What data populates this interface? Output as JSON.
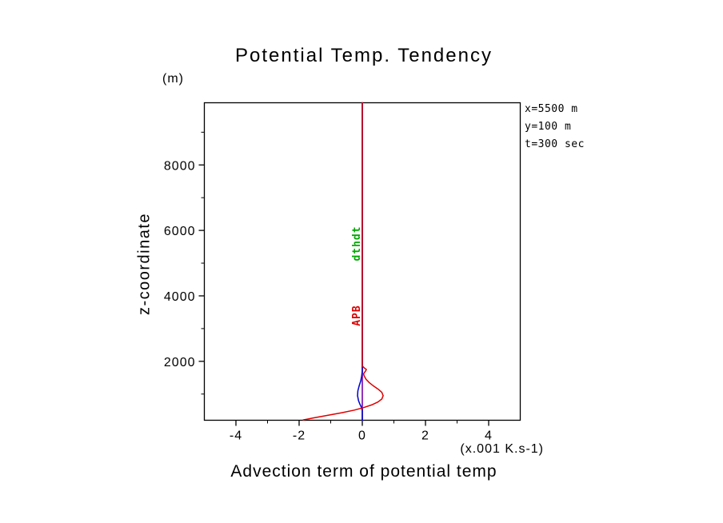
{
  "title": "Potential Temp. Tendency",
  "annotations": {
    "x": "x=5500 m",
    "y": "y=100 m",
    "t": "t=300 sec"
  },
  "y_axis": {
    "unit": "(m)",
    "label": "z-coordinate"
  },
  "x_axis": {
    "unit": "(x.001 K.s-1)",
    "label": "Advection term of potential temp"
  },
  "chart_data": {
    "type": "line",
    "title": "Potential Temp. Tendency",
    "xlabel": "Advection term of potential temp (x.001 K.s-1)",
    "ylabel": "z-coordinate (m)",
    "xlim": [
      -5,
      5
    ],
    "ylim": [
      200,
      9900
    ],
    "grid": false,
    "x_ticks": [
      {
        "value": -4,
        "label": "-4"
      },
      {
        "value": -2,
        "label": "-2"
      },
      {
        "value": 0,
        "label": "0"
      },
      {
        "value": 2,
        "label": "2"
      },
      {
        "value": 4,
        "label": "4"
      }
    ],
    "x_minor": [
      -3,
      -1,
      1,
      3
    ],
    "y_ticks": [
      {
        "value": 2000,
        "label": "2000"
      },
      {
        "value": 4000,
        "label": "4000"
      },
      {
        "value": 6000,
        "label": "6000"
      },
      {
        "value": 8000,
        "label": "8000"
      }
    ],
    "y_minor": [
      1000,
      3000,
      5000,
      7000,
      9000
    ],
    "series": [
      {
        "name": "green-zero-profile",
        "color": "#00a800",
        "points": [
          [
            0,
            200
          ],
          [
            0,
            9900
          ]
        ]
      },
      {
        "name": "purple-zero-profile",
        "color": "#9900cc",
        "points": [
          [
            0,
            200
          ],
          [
            0,
            9900
          ]
        ]
      },
      {
        "name": "blue-profile",
        "color": "#0000cc",
        "points": [
          [
            0,
            9900
          ],
          [
            0,
            1700
          ],
          [
            -0.02,
            1550
          ],
          [
            -0.05,
            1400
          ],
          [
            -0.1,
            1250
          ],
          [
            -0.14,
            1100
          ],
          [
            -0.15,
            950
          ],
          [
            -0.12,
            800
          ],
          [
            -0.08,
            700
          ],
          [
            -0.03,
            600
          ],
          [
            0,
            500
          ],
          [
            0,
            200
          ]
        ]
      },
      {
        "name": "red-profile",
        "color": "#dd0000",
        "points": [
          [
            0,
            9900
          ],
          [
            0,
            1860
          ],
          [
            0.06,
            1800
          ],
          [
            0.13,
            1750
          ],
          [
            0.1,
            1700
          ],
          [
            0.04,
            1620
          ],
          [
            0.06,
            1550
          ],
          [
            0.12,
            1450
          ],
          [
            0.22,
            1350
          ],
          [
            0.35,
            1250
          ],
          [
            0.5,
            1150
          ],
          [
            0.62,
            1050
          ],
          [
            0.66,
            950
          ],
          [
            0.62,
            850
          ],
          [
            0.5,
            760
          ],
          [
            0.3,
            670
          ],
          [
            0.05,
            590
          ],
          [
            -0.25,
            510
          ],
          [
            -0.65,
            430
          ],
          [
            -1.1,
            350
          ],
          [
            -1.55,
            270
          ],
          [
            -1.87,
            210
          ]
        ]
      }
    ],
    "curve_labels": [
      {
        "text": "dthdt",
        "x": -0.08,
        "z": 5600,
        "color": "#00a800"
      },
      {
        "text": "APB",
        "x": -0.08,
        "z": 3400,
        "color": "#dd0000"
      }
    ]
  }
}
